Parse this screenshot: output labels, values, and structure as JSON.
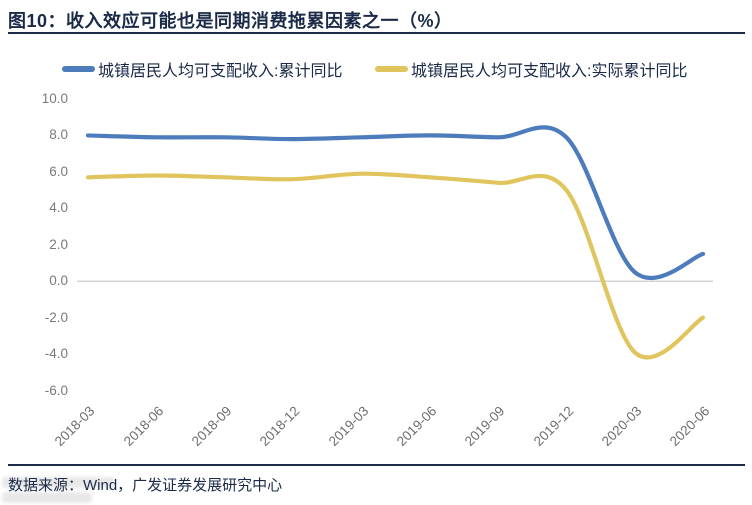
{
  "figure": {
    "title": "图10：收入效应可能也是同期消费拖累因素之一（%）"
  },
  "legend": [
    {
      "label": "城镇居民人均可支配收入:累计同比",
      "color": "#4d7cbc"
    },
    {
      "label": "城镇居民人均可支配收入:实际累计同比",
      "color": "#e0c55e"
    }
  ],
  "footer": {
    "text": "数据来源：Wind，广发证券发展研究中心"
  },
  "chart_data": {
    "type": "line",
    "title": "收入效应可能也是同期消费拖累因素之一（%）",
    "categories": [
      "2018-03",
      "2018-06",
      "2018-09",
      "2018-12",
      "2019-03",
      "2019-06",
      "2019-09",
      "2019-12",
      "2020-03",
      "2020-06"
    ],
    "series": [
      {
        "name": "城镇居民人均可支配收入:累计同比",
        "color": "#4d7cbc",
        "values": [
          8.0,
          7.9,
          7.9,
          7.8,
          7.9,
          8.0,
          7.9,
          7.9,
          0.5,
          1.5
        ]
      },
      {
        "name": "城镇居民人均可支配收入:实际累计同比",
        "color": "#e0c55e",
        "values": [
          5.7,
          5.8,
          5.7,
          5.6,
          5.9,
          5.7,
          5.4,
          5.0,
          -3.9,
          -2.0
        ]
      }
    ],
    "xlabel": "",
    "ylabel": "",
    "ylim": [
      -6.0,
      10.0
    ],
    "yticks": [
      10.0,
      8.0,
      6.0,
      4.0,
      2.0,
      0.0,
      -2.0,
      -4.0,
      -6.0
    ],
    "ytick_labels": [
      "10.0",
      "8.0",
      "6.0",
      "4.0",
      "2.0",
      "0.0",
      "-2.0",
      "-4.0",
      "-6.0"
    ],
    "grid": "zero-line-only",
    "zero_line_color": "#c6c6c6",
    "legend_position": "top",
    "line_style": "smooth-spline",
    "x_tick_rotation_deg": -45
  }
}
